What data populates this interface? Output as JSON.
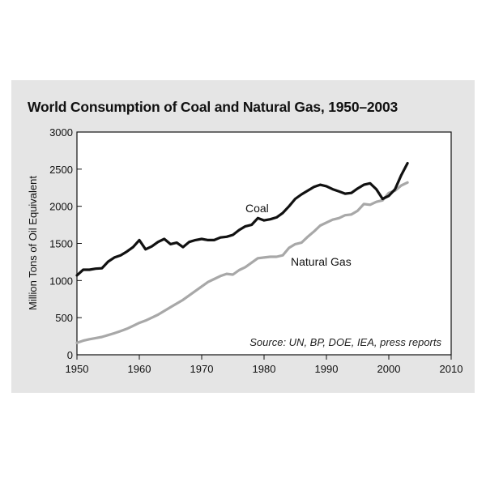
{
  "chart_data": {
    "type": "line",
    "title": "World Consumption of Coal and Natural Gas, 1950–2003",
    "xlabel": "",
    "ylabel": "Million Tons of Oil Equivalent",
    "xlim": [
      1950,
      2010
    ],
    "ylim": [
      0,
      3000
    ],
    "xticks": [
      1950,
      1960,
      1970,
      1980,
      1990,
      2000,
      2010
    ],
    "yticks": [
      0,
      500,
      1000,
      1500,
      2000,
      2500,
      3000
    ],
    "grid": false,
    "legend": "inline labels",
    "annotation": "Source: UN, BP, DOE, IEA, press reports",
    "series": [
      {
        "name": "Coal",
        "color": "#111111",
        "x": [
          1950,
          1951,
          1952,
          1953,
          1954,
          1955,
          1956,
          1957,
          1958,
          1959,
          1960,
          1961,
          1962,
          1963,
          1964,
          1965,
          1966,
          1967,
          1968,
          1969,
          1970,
          1971,
          1972,
          1973,
          1974,
          1975,
          1976,
          1977,
          1978,
          1979,
          1980,
          1981,
          1982,
          1983,
          1984,
          1985,
          1986,
          1987,
          1988,
          1989,
          1990,
          1991,
          1992,
          1993,
          1994,
          1995,
          1996,
          1997,
          1998,
          1999,
          2000,
          2001,
          2002,
          2003
        ],
        "values": [
          1070,
          1145,
          1145,
          1160,
          1165,
          1255,
          1310,
          1340,
          1390,
          1450,
          1545,
          1420,
          1460,
          1520,
          1560,
          1490,
          1510,
          1450,
          1520,
          1545,
          1560,
          1545,
          1545,
          1580,
          1590,
          1615,
          1680,
          1730,
          1750,
          1840,
          1810,
          1825,
          1850,
          1910,
          2000,
          2100,
          2160,
          2210,
          2260,
          2290,
          2270,
          2230,
          2200,
          2170,
          2180,
          2240,
          2290,
          2310,
          2230,
          2100,
          2140,
          2230,
          2420,
          2580
        ]
      },
      {
        "name": "Natural Gas",
        "color": "#a8a8a8",
        "x": [
          1950,
          1951,
          1952,
          1953,
          1954,
          1955,
          1956,
          1957,
          1958,
          1959,
          1960,
          1961,
          1962,
          1963,
          1964,
          1965,
          1966,
          1967,
          1968,
          1969,
          1970,
          1971,
          1972,
          1973,
          1974,
          1975,
          1976,
          1977,
          1978,
          1979,
          1980,
          1981,
          1982,
          1983,
          1984,
          1985,
          1986,
          1987,
          1988,
          1989,
          1990,
          1991,
          1992,
          1993,
          1994,
          1995,
          1996,
          1997,
          1998,
          1999,
          2000,
          2001,
          2002,
          2003
        ],
        "values": [
          160,
          190,
          210,
          225,
          240,
          265,
          290,
          320,
          350,
          390,
          430,
          460,
          500,
          540,
          590,
          640,
          690,
          740,
          800,
          860,
          920,
          980,
          1020,
          1060,
          1090,
          1080,
          1140,
          1180,
          1240,
          1300,
          1310,
          1320,
          1320,
          1340,
          1440,
          1490,
          1510,
          1590,
          1660,
          1740,
          1780,
          1820,
          1840,
          1880,
          1890,
          1940,
          2030,
          2020,
          2060,
          2080,
          2180,
          2210,
          2280,
          2320
        ]
      }
    ]
  }
}
